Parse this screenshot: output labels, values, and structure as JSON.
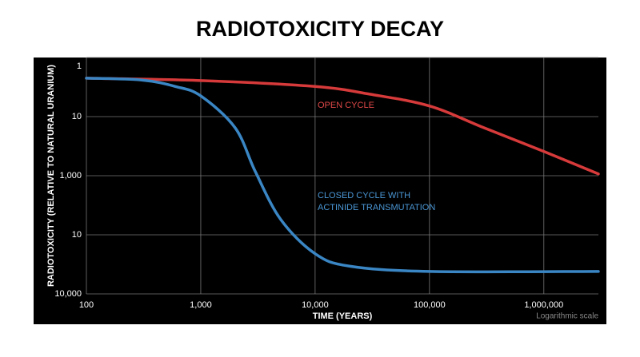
{
  "chart_data": {
    "type": "line",
    "title": "RADIOTOXICITY DECAY",
    "x_label": "TIME (YEARS)",
    "y_label": "RADIOTOXICITY (RELATIVE TO NATURAL URANIUM)",
    "note": "Logarithmic scale",
    "annotations": [
      "OPEN CYCLE",
      "CLOSED CYCLE WITH",
      "ACTINIDE TRANSMUTATION"
    ],
    "x_log": true,
    "grid": true,
    "xlim": [
      100,
      3000000
    ],
    "xticks": [
      100,
      {
        "value": 1000,
        "label": "1,000"
      },
      {
        "value": 10000,
        "label": "10,000"
      },
      {
        "value": 100000,
        "label": "100,000"
      },
      {
        "value": 1000000,
        "label": "1,000,000"
      }
    ],
    "ylim": [
      0,
      4
    ],
    "yticks": [
      {
        "value": 4,
        "label": "1"
      },
      {
        "value": 3,
        "label": "10"
      },
      {
        "value": 2,
        "label": "1,000"
      },
      {
        "value": 1,
        "label": "10"
      },
      {
        "value": 0,
        "label": "10,000"
      }
    ],
    "series": [
      {
        "color": "#d63a3a",
        "x": [
          100,
          1000,
          10000,
          30000,
          100000,
          300000,
          1000000,
          3000000
        ],
        "values": [
          3.65,
          3.61,
          3.51,
          3.38,
          3.18,
          2.81,
          2.41,
          2.03
        ]
      },
      {
        "color": "#3a86c4",
        "x": [
          100,
          300,
          600,
          1000,
          2000,
          3000,
          5000,
          10000,
          20000,
          100000,
          3000000
        ],
        "values": [
          3.65,
          3.62,
          3.51,
          3.35,
          2.81,
          2.07,
          1.26,
          0.68,
          0.47,
          0.38,
          0.38
        ]
      }
    ]
  }
}
